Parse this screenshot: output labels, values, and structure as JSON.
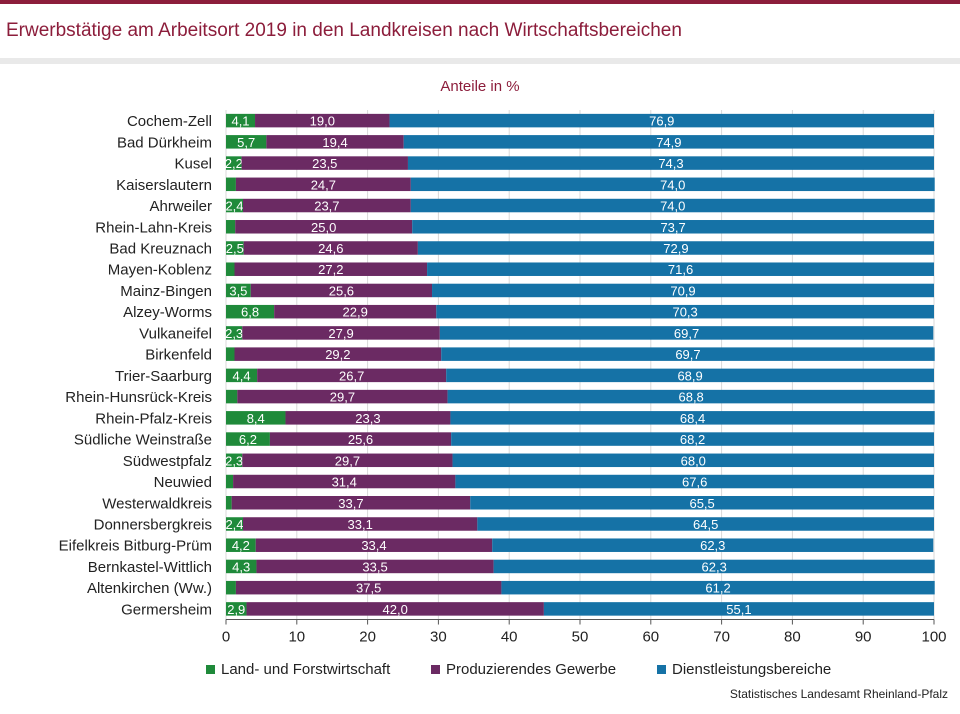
{
  "title": "Erwerbstätige am Arbeitsort 2019 in den Landkreisen nach Wirtschaftsbereichen",
  "source": "Statistisches Landesamt Rheinland-Pfalz",
  "colors": {
    "agri": "#1f8a3a",
    "prod": "#6b2a63",
    "serv": "#1572a6",
    "accent": "#8c1d3b"
  },
  "chart_data": {
    "type": "bar",
    "orientation": "horizontal",
    "stacked": true,
    "subtitle": "Anteile in %",
    "xlim": [
      0,
      100
    ],
    "xticks": [
      "0",
      "10",
      "20",
      "30",
      "40",
      "50",
      "60",
      "70",
      "80",
      "90",
      "100"
    ],
    "grid": true,
    "legend_position": "bottom",
    "categories": [
      "Cochem-Zell",
      "Bad Dürkheim",
      "Kusel",
      "Kaiserslautern",
      "Ahrweiler",
      "Rhein-Lahn-Kreis",
      "Bad Kreuznach",
      "Mayen-Koblenz",
      "Mainz-Bingen",
      "Alzey-Worms",
      "Vulkaneifel",
      "Birkenfeld",
      "Trier-Saarburg",
      "Rhein-Hunsrück-Kreis",
      "Rhein-Pfalz-Kreis",
      "Südliche Weinstraße",
      "Südwestpfalz",
      "Neuwied",
      "Westerwaldkreis",
      "Donnersbergkreis",
      "Eifelkreis Bitburg-Prüm",
      "Bernkastel-Wittlich",
      "Altenkirchen (Ww.)",
      "Germersheim"
    ],
    "series": [
      {
        "name": "Land- und Forstwirtschaft",
        "values": [
          4.1,
          5.7,
          2.2,
          1.4,
          2.4,
          1.3,
          2.5,
          1.2,
          3.5,
          6.8,
          2.3,
          1.2,
          4.4,
          1.6,
          8.4,
          6.2,
          2.3,
          1.0,
          0.8,
          2.4,
          4.2,
          4.3,
          1.4,
          2.9
        ],
        "labels": [
          "4,1",
          "5,7",
          "2,2",
          "",
          "2,4",
          "",
          "2,5",
          "",
          "3,5",
          "6,8",
          "2,3",
          "",
          "4,4",
          "",
          "8,4",
          "6,2",
          "2,3",
          "",
          "",
          "2,4",
          "4,2",
          "4,3",
          "",
          "2,9"
        ]
      },
      {
        "name": "Produzierendes Gewerbe",
        "values": [
          19.0,
          19.4,
          23.5,
          24.7,
          23.7,
          25.0,
          24.6,
          27.2,
          25.6,
          22.9,
          27.9,
          29.2,
          26.7,
          29.7,
          23.3,
          25.6,
          29.7,
          31.4,
          33.7,
          33.1,
          33.4,
          33.5,
          37.5,
          42.0
        ],
        "labels": [
          "19,0",
          "19,4",
          "23,5",
          "24,7",
          "23,7",
          "25,0",
          "24,6",
          "27,2",
          "25,6",
          "22,9",
          "27,9",
          "29,2",
          "26,7",
          "29,7",
          "23,3",
          "25,6",
          "29,7",
          "31,4",
          "33,7",
          "33,1",
          "33,4",
          "33,5",
          "37,5",
          "42,0"
        ]
      },
      {
        "name": "Dienstleistungsbereiche",
        "values": [
          76.9,
          74.9,
          74.3,
          74.0,
          74.0,
          73.7,
          72.9,
          71.6,
          70.9,
          70.3,
          69.7,
          69.7,
          68.9,
          68.8,
          68.4,
          68.2,
          68.0,
          67.6,
          65.5,
          64.5,
          62.3,
          62.3,
          61.2,
          55.1
        ],
        "labels": [
          "76,9",
          "74,9",
          "74,3",
          "74,0",
          "74,0",
          "73,7",
          "72,9",
          "71,6",
          "70,9",
          "70,3",
          "69,7",
          "69,7",
          "68,9",
          "68,8",
          "68,4",
          "68,2",
          "68,0",
          "67,6",
          "65,5",
          "64,5",
          "62,3",
          "62,3",
          "61,2",
          "55,1"
        ]
      }
    ]
  }
}
